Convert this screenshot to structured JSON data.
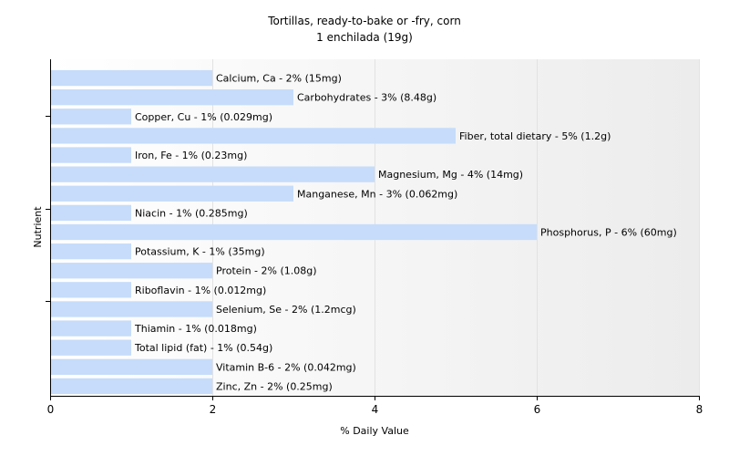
{
  "chart_data": {
    "type": "bar",
    "orientation": "horizontal",
    "title": "Tortillas, ready-to-bake or -fry, corn",
    "subtitle": "1 enchilada (19g)",
    "xlabel": "% Daily Value",
    "ylabel": "Nutrient",
    "xlim": [
      0,
      8
    ],
    "xticks": [
      "0",
      "2",
      "4",
      "6",
      "8"
    ],
    "grid": true,
    "bar_color": "#c6dcfa",
    "categories": [
      "Calcium, Ca",
      "Carbohydrates",
      "Copper, Cu",
      "Fiber, total dietary",
      "Iron, Fe",
      "Magnesium, Mg",
      "Manganese, Mn",
      "Niacin",
      "Phosphorus, P",
      "Potassium, K",
      "Protein",
      "Riboflavin",
      "Selenium, Se",
      "Thiamin",
      "Total lipid (fat)",
      "Vitamin B-6",
      "Zinc, Zn"
    ],
    "values": [
      2,
      3,
      1,
      5,
      1,
      4,
      3,
      1,
      6,
      1,
      2,
      1,
      2,
      1,
      1,
      2,
      2
    ],
    "labels": [
      "Calcium, Ca - 2% (15mg)",
      "Carbohydrates - 3% (8.48g)",
      "Copper, Cu - 1% (0.029mg)",
      "Fiber, total dietary - 5% (1.2g)",
      "Iron, Fe - 1% (0.23mg)",
      "Magnesium, Mg - 4% (14mg)",
      "Manganese, Mn - 3% (0.062mg)",
      "Niacin - 1% (0.285mg)",
      "Phosphorus, P - 6% (60mg)",
      "Potassium, K - 1% (35mg)",
      "Protein - 2% (1.08g)",
      "Riboflavin - 1% (0.012mg)",
      "Selenium, Se - 2% (1.2mcg)",
      "Thiamin - 1% (0.018mg)",
      "Total lipid (fat) - 1% (0.54g)",
      "Vitamin B-6 - 2% (0.042mg)",
      "Zinc, Zn - 2% (0.25mg)"
    ]
  }
}
